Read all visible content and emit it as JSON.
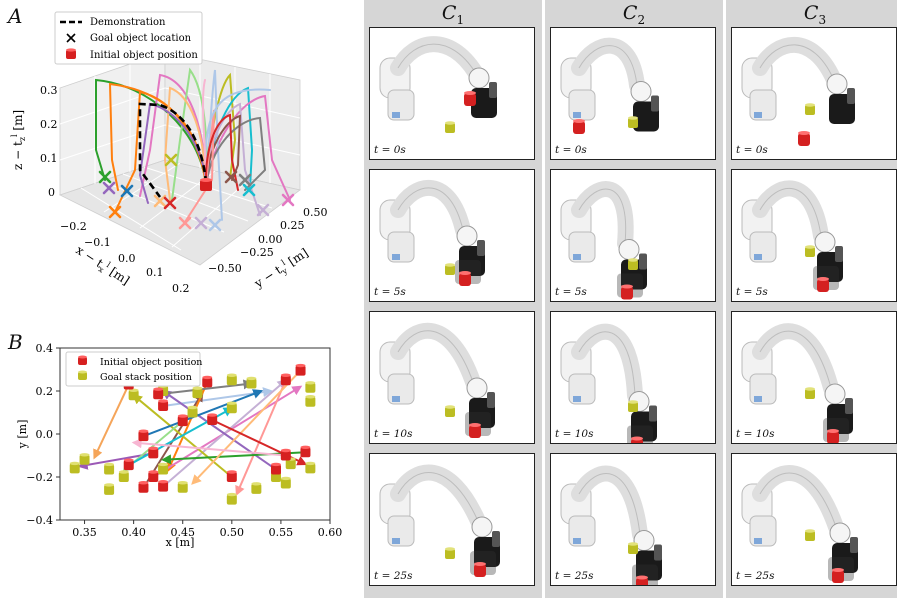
{
  "panel_a": {
    "letter": "A",
    "legend": {
      "demonstration": "Demonstration",
      "goal_location": "Goal object location",
      "initial_position": "Initial object position"
    },
    "z_ticks": [
      "0",
      "0.1",
      "0.2",
      "0.3"
    ],
    "z_label": "z − t",
    "z_label_sub": "z",
    "z_label_sup": "l",
    "z_unit": " [m]",
    "x_ticks": [
      "−0.2",
      "−0.1",
      "0.0",
      "0.1",
      "0.2"
    ],
    "x_label": "x − t",
    "x_label_sub": "x",
    "x_label_sup": "l",
    "x_unit": " [m]",
    "y_ticks": [
      "−0.50",
      "−0.25",
      "0.00",
      "0.25",
      "0.50"
    ],
    "y_label": "y − t",
    "y_label_sub": "y",
    "y_label_sup": "l",
    "y_unit": " [m]"
  },
  "panel_b": {
    "letter": "B",
    "legend": {
      "initial_position": "Initial object position",
      "goal_stack": "Goal stack position"
    },
    "chart_data": {
      "type": "scatter",
      "xlabel": "x [m]",
      "ylabel": "y [m]",
      "xlim": [
        0.325,
        0.6
      ],
      "ylim": [
        -0.4,
        0.4
      ],
      "x_ticks": [
        "0.35",
        "0.40",
        "0.45",
        "0.50",
        "0.55",
        "0.60"
      ],
      "y_ticks": [
        "−0.4",
        "−0.2",
        "0.0",
        "0.2",
        "0.4"
      ],
      "initial_positions": [
        [
          0.395,
          0.23
        ],
        [
          0.425,
          0.185
        ],
        [
          0.43,
          0.13
        ],
        [
          0.475,
          0.24
        ],
        [
          0.48,
          0.065
        ],
        [
          0.555,
          0.25
        ],
        [
          0.57,
          0.295
        ],
        [
          0.41,
          -0.01
        ],
        [
          0.42,
          -0.09
        ],
        [
          0.395,
          -0.145
        ],
        [
          0.42,
          -0.2
        ],
        [
          0.43,
          -0.245
        ],
        [
          0.5,
          -0.2
        ],
        [
          0.545,
          -0.165
        ],
        [
          0.575,
          -0.085
        ],
        [
          0.45,
          0.06
        ],
        [
          0.555,
          -0.1
        ],
        [
          0.41,
          -0.25
        ]
      ],
      "goal_positions": [
        [
          0.4,
          0.18
        ],
        [
          0.43,
          0.2
        ],
        [
          0.465,
          0.19
        ],
        [
          0.5,
          0.25
        ],
        [
          0.52,
          0.235
        ],
        [
          0.58,
          0.215
        ],
        [
          0.58,
          0.15
        ],
        [
          0.5,
          0.12
        ],
        [
          0.46,
          0.1
        ],
        [
          0.35,
          -0.12
        ],
        [
          0.34,
          -0.16
        ],
        [
          0.375,
          -0.165
        ],
        [
          0.375,
          -0.26
        ],
        [
          0.39,
          -0.2
        ],
        [
          0.43,
          -0.165
        ],
        [
          0.45,
          -0.25
        ],
        [
          0.525,
          -0.255
        ],
        [
          0.5,
          -0.305
        ],
        [
          0.555,
          -0.23
        ],
        [
          0.56,
          -0.14
        ],
        [
          0.58,
          -0.16
        ],
        [
          0.545,
          -0.2
        ]
      ],
      "arrows": [
        {
          "from": [
            0.395,
            0.23
          ],
          "to": [
            0.36,
            -0.11
          ],
          "color": "#f5a55a"
        },
        {
          "from": [
            0.42,
            -0.09
          ],
          "to": [
            0.345,
            -0.15
          ],
          "color": "#9b59b6"
        },
        {
          "from": [
            0.43,
            0.13
          ],
          "to": [
            0.54,
            0.2
          ],
          "color": "#aec7e8"
        },
        {
          "from": [
            0.41,
            -0.25
          ],
          "to": [
            0.47,
            0.19
          ],
          "color": "#8c564b"
        },
        {
          "from": [
            0.475,
            0.24
          ],
          "to": [
            0.435,
            -0.17
          ],
          "color": "#ff7f0e"
        },
        {
          "from": [
            0.42,
            -0.2
          ],
          "to": [
            0.57,
            0.22
          ],
          "color": "#e377c2"
        },
        {
          "from": [
            0.43,
            -0.245
          ],
          "to": [
            0.555,
            0.25
          ],
          "color": "#c5b0d5"
        },
        {
          "from": [
            0.5,
            -0.2
          ],
          "to": [
            0.4,
            0.18
          ],
          "color": "#bcbd22"
        },
        {
          "from": [
            0.555,
            0.25
          ],
          "to": [
            0.505,
            -0.28
          ],
          "color": "#ff9896"
        },
        {
          "from": [
            0.545,
            -0.165
          ],
          "to": [
            0.43,
            0.2
          ],
          "color": "#9467bd"
        },
        {
          "from": [
            0.575,
            -0.085
          ],
          "to": [
            0.43,
            -0.12
          ],
          "color": "#2ca02c"
        },
        {
          "from": [
            0.57,
            0.295
          ],
          "to": [
            0.46,
            -0.23
          ],
          "color": "#ffbb78"
        },
        {
          "from": [
            0.41,
            -0.01
          ],
          "to": [
            0.53,
            0.2
          ],
          "color": "#1f77b4"
        },
        {
          "from": [
            0.48,
            0.065
          ],
          "to": [
            0.575,
            -0.14
          ],
          "color": "#d62728"
        },
        {
          "from": [
            0.45,
            0.06
          ],
          "to": [
            0.39,
            -0.17
          ],
          "color": "#98df8a"
        },
        {
          "from": [
            0.425,
            0.185
          ],
          "to": [
            0.52,
            0.235
          ],
          "color": "#7f7f7f"
        },
        {
          "from": [
            0.395,
            -0.145
          ],
          "to": [
            0.5,
            0.12
          ],
          "color": "#17becf"
        },
        {
          "from": [
            0.555,
            -0.1
          ],
          "to": [
            0.4,
            -0.04
          ],
          "color": "#f7b6d2"
        }
      ]
    }
  },
  "panel_c": {
    "columns": [
      {
        "label": "C",
        "sub": "1"
      },
      {
        "label": "C",
        "sub": "2"
      },
      {
        "label": "C",
        "sub": "3"
      }
    ],
    "times": [
      "0s",
      "5s",
      "10s",
      "25s"
    ],
    "t_prefix": "t",
    "t_equals": " = "
  }
}
